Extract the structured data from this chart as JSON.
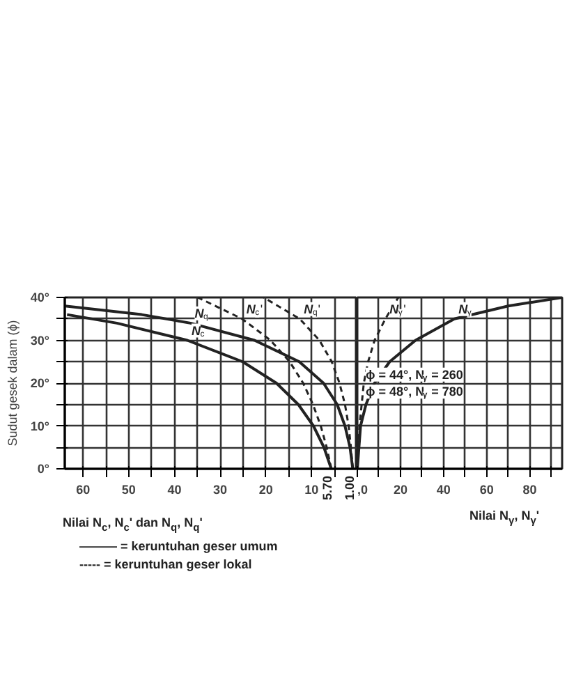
{
  "chart_data": [
    {
      "type": "line",
      "ylabel": "Sudut gesek dalam (ϕ)",
      "xlabel": "Nilai N$_{c}$, N$_{c}$' dan N$_{q}$, N$_{q}$'",
      "xlim": [
        64,
        0
      ],
      "xticks": [
        60,
        50,
        40,
        30,
        20,
        10,
        {
          "value": 55,
          "label": null
        },
        {
          "value": 45,
          "label": null
        },
        {
          "value": 35,
          "label": null
        },
        {
          "value": 25,
          "label": null
        },
        {
          "value": 15,
          "label": null
        },
        {
          "value": 5,
          "label": null
        },
        {
          "value": 0,
          "label": null
        }
      ],
      "ylim": [
        0,
        40
      ],
      "yticks": [
        {
          "value": 0,
          "label": "0°"
        },
        {
          "value": 10,
          "label": "10°"
        },
        {
          "value": 20,
          "label": "20°"
        },
        {
          "value": 30,
          "label": "30°"
        },
        {
          "value": 40,
          "label": "40°"
        },
        {
          "value": 5,
          "label": null
        },
        {
          "value": 15,
          "label": null
        },
        {
          "value": 25,
          "label": null
        },
        {
          "value": 35,
          "label": null
        }
      ],
      "grid": true,
      "series": [
        {
          "name": "N$_{c}$",
          "color": "#222222",
          "line_style": "solid",
          "x": [
            5.7,
            7.3,
            9.6,
            12.9,
            17.7,
            25.1,
            37.2,
            52.6,
            63.5
          ],
          "values": [
            0,
            5,
            10,
            15,
            20,
            25,
            30,
            34,
            36
          ]
        },
        {
          "name": "N$_{q}$",
          "color": "#222222",
          "line_style": "solid",
          "x": [
            1,
            1.6,
            2.7,
            4.4,
            7.4,
            12.7,
            22.5,
            36.5,
            47.2,
            64
          ],
          "values": [
            0,
            5,
            10,
            15,
            20,
            25,
            30,
            34,
            36,
            38
          ]
        },
        {
          "name": "N$_{c}$'",
          "color": "#222222",
          "line_style": "dashed",
          "x": [
            5.7,
            6.7,
            8.0,
            9.7,
            11.85,
            14.8,
            19.0,
            25.2,
            34.9
          ],
          "values": [
            0,
            5,
            10,
            15,
            20,
            25,
            30,
            35,
            40
          ]
        },
        {
          "name": "N$_{q}$'",
          "color": "#222222",
          "line_style": "dashed",
          "x": [
            1,
            1.4,
            1.9,
            2.7,
            3.9,
            5.6,
            8.3,
            12.6,
            20.5
          ],
          "values": [
            0,
            5,
            10,
            15,
            20,
            25,
            30,
            35,
            40
          ]
        }
      ],
      "annotations": [
        {
          "text": "5.70",
          "x": 5.7,
          "y": 0
        },
        {
          "text": "1.00",
          "x": 1,
          "y": 0
        },
        "——— = keruntuhan geser umum",
        "----- = keruntuhan geser lokal"
      ]
    },
    {
      "type": "line",
      "xlabel": "Nilai N$_{γ}$, N$_{γ}$'",
      "tick_labels": "x",
      "xlim": [
        0,
        95
      ],
      "xticks": [
        {
          "value": 0,
          "label": ",0"
        },
        20,
        40,
        60,
        80,
        {
          "value": 10,
          "label": null
        },
        {
          "value": 30,
          "label": null
        },
        {
          "value": 50,
          "label": null
        },
        {
          "value": 70,
          "label": null
        },
        {
          "value": 90,
          "label": null
        }
      ],
      "ylim": [
        0,
        40
      ],
      "yticks": [
        0,
        10,
        20,
        30,
        40,
        {
          "value": 5,
          "label": null
        },
        {
          "value": 15,
          "label": null
        },
        {
          "value": 25,
          "label": null
        },
        {
          "value": 35,
          "label": null
        }
      ],
      "grid": true,
      "series": [
        {
          "name": "N$_{γ}$",
          "color": "#222222",
          "line_style": "solid",
          "x": [
            0,
            1.5,
            4,
            8,
            15,
            27,
            45,
            70,
            95
          ],
          "values": [
            0,
            10,
            15,
            20,
            25,
            30,
            35,
            38,
            40
          ]
        },
        {
          "name": "N$_{γ}$'",
          "color": "#222222",
          "line_style": "dashed",
          "x": [
            0,
            0.5,
            1,
            2,
            3,
            5,
            8,
            13,
            19
          ],
          "values": [
            0,
            5,
            10,
            15,
            20,
            25,
            30,
            35,
            40
          ]
        }
      ],
      "annotations": [
        "ϕ = 44°, N$_{γ}$ = 260",
        "ϕ = 48°, N$_{γ}$ = 780"
      ]
    }
  ]
}
